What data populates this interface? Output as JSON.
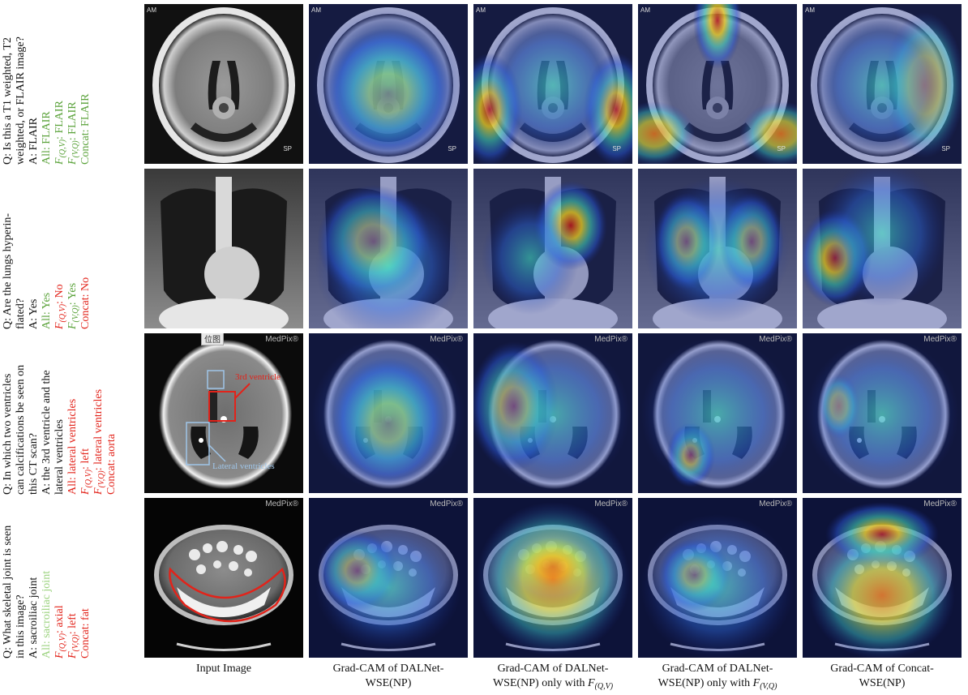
{
  "rows": [
    {
      "question": [
        "Q: Is this a T1 weighted, T2",
        "weighted, or FLAIR image?"
      ],
      "answer": "A: FLAIR",
      "all": "All: FLAIR",
      "fqv": "FLAIR",
      "fvq": "FLAIR",
      "concat": "Concat: FLAIR"
    },
    {
      "question": [
        "Q: Are the lungs hyperin-",
        "flated?"
      ],
      "answer": "A: Yes",
      "all": "All: Yes",
      "fqv": "No",
      "fvq": "Yes",
      "concat": "Concat: No"
    },
    {
      "question": [
        "Q: In which two ventricles",
        "can calcifications be seen on",
        "this CT scan?"
      ],
      "answer": [
        "A: the 3rd ventricle and the",
        "lateral ventricles"
      ],
      "all": "All: lateral ventricles",
      "fqv": "left",
      "fvq": "lateral ventricles",
      "concat": "Concat: aorta"
    },
    {
      "question": [
        "Q: What skeletal joint is seen",
        "in this image?"
      ],
      "answer": "A: sacroiliac joint",
      "all": "All: sacroiliac joint",
      "fqv": "axial",
      "fvq": "left",
      "concat": "Concat: fat"
    }
  ],
  "annotations": {
    "third_ventricle": "3rd ventricle",
    "lateral_ventricles": "Lateral ventricles",
    "medpix": "MedPix®",
    "corner_am": "AM",
    "corner_sp": "SP",
    "tooltip": "位图"
  },
  "columns": {
    "col1": [
      "Input Image"
    ],
    "col2": [
      "Grad-CAM of DALNet-",
      "WSE(NP)"
    ],
    "col3": [
      "Grad-CAM of DALNet-",
      "WSE(NP) only with"
    ],
    "col4": [
      "Grad-CAM of DALNet-",
      "WSE(NP) only with"
    ],
    "col5": [
      "Grad-CAM of Concat-",
      "WSE(NP)"
    ]
  },
  "colors": {
    "correct": "#5aa23a",
    "correct_light": "#9bd27e",
    "wrong": "#e2231a",
    "annotation_box_red": "#e2231a",
    "annotation_box_blue": "#9fc5e8"
  }
}
